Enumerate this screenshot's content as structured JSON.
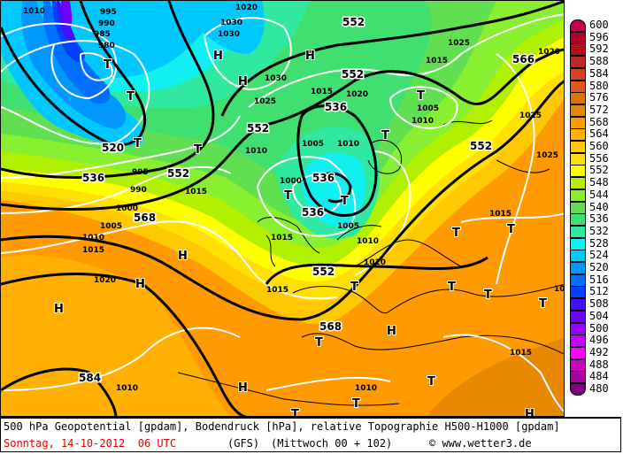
{
  "footer": {
    "line1": "500 hPa Geopotential [gpdam], Bodendruck [hPa], relative Topographie H500-H1000 [gpdam]",
    "date": "Sonntag, 14-10-2012  06 UTC",
    "model": "(GFS)",
    "forecast": "(Mittwoch 00 + 102)",
    "copyright": "© www.wetter3.de"
  },
  "legend": {
    "levels": [
      "600",
      "596",
      "592",
      "588",
      "584",
      "580",
      "576",
      "572",
      "568",
      "564",
      "560",
      "556",
      "552",
      "548",
      "544",
      "540",
      "536",
      "532",
      "528",
      "524",
      "520",
      "516",
      "512",
      "508",
      "504",
      "500",
      "496",
      "492",
      "488",
      "484",
      "480"
    ],
    "colors": [
      "#c0004a",
      "#b0002c",
      "#b01020",
      "#c02828",
      "#d84020",
      "#e05818",
      "#e87000",
      "#e88800",
      "#ff9a00",
      "#ffb000",
      "#ffc800",
      "#ffe000",
      "#ffff00",
      "#b0f000",
      "#88f030",
      "#60e050",
      "#40e070",
      "#30e8a0",
      "#10f0f0",
      "#00c8ff",
      "#0098ff",
      "#0070ff",
      "#0040ff",
      "#4010ff",
      "#7000ff",
      "#9800ff",
      "#c800ff",
      "#ff00ff",
      "#d000c0",
      "#a800a0",
      "#800080"
    ]
  },
  "map": {
    "geopotential_labels": [
      "552",
      "552",
      "566",
      "552",
      "536",
      "552",
      "520",
      "536",
      "552",
      "568",
      "536",
      "536",
      "552",
      "568",
      "584"
    ],
    "isobar_labels": [
      "1010",
      "995",
      "990",
      "985",
      "980",
      "1020",
      "1030",
      "1030",
      "1025",
      "1030",
      "1025",
      "1015",
      "1020",
      "1005",
      "1010",
      "1010",
      "1025",
      "1025",
      "1015",
      "1005",
      "1010",
      "1000",
      "995",
      "990",
      "1000",
      "1005",
      "1010",
      "1015",
      "1015",
      "1010",
      "1005",
      "1010",
      "1015",
      "1020",
      "1020",
      "1015",
      "1010",
      "1015",
      "1015",
      "1015",
      "1010"
    ],
    "highs": [
      "H",
      "H",
      "H",
      "H",
      "H",
      "H",
      "H",
      "H",
      "H"
    ],
    "lows": [
      "T",
      "T",
      "T",
      "T",
      "T",
      "T",
      "T",
      "T",
      "T",
      "T",
      "T",
      "T",
      "T",
      "T",
      "T",
      "T",
      "T",
      "T"
    ]
  }
}
